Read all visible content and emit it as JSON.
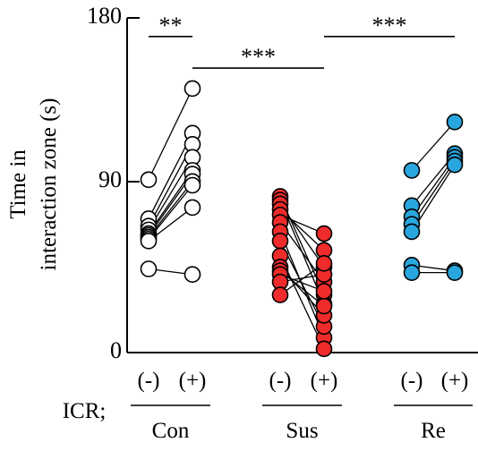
{
  "chart_data": {
    "type": "scatter",
    "style": "paired-dot-plot",
    "ylabel_line1": "Time in",
    "ylabel_line2": "interaction zone (s)",
    "ylim": [
      0,
      180
    ],
    "yticks": [
      "0",
      "90",
      "180"
    ],
    "ticks_values": [
      0,
      90,
      180
    ],
    "row_label": "ICR;",
    "conditions": [
      "(-)",
      "(+)"
    ],
    "groups": [
      {
        "name": "Con",
        "color": "#ffffff",
        "pairs": [
          [
            93,
            142
          ],
          [
            72,
            118
          ],
          [
            68,
            112
          ],
          [
            66,
            105
          ],
          [
            64,
            98
          ],
          [
            63,
            96
          ],
          [
            62,
            92
          ],
          [
            61,
            90
          ],
          [
            60,
            78
          ],
          [
            45,
            42
          ]
        ]
      },
      {
        "name": "Sus",
        "color": "#ef2b2b",
        "pairs": [
          [
            84,
            31
          ],
          [
            82,
            26
          ],
          [
            80,
            46
          ],
          [
            77,
            55
          ],
          [
            74,
            64
          ],
          [
            70,
            38
          ],
          [
            65,
            8
          ],
          [
            60,
            14
          ],
          [
            52,
            2
          ],
          [
            46,
            20
          ],
          [
            44,
            25
          ],
          [
            42,
            33
          ],
          [
            38,
            42
          ],
          [
            31,
            48
          ]
        ]
      },
      {
        "name": "Re",
        "color": "#2aa6df",
        "pairs": [
          [
            98,
            124
          ],
          [
            79,
            107
          ],
          [
            73,
            105
          ],
          [
            69,
            103
          ],
          [
            65,
            101
          ],
          [
            47,
            44
          ],
          [
            43,
            43
          ]
        ]
      }
    ],
    "significance": [
      {
        "label": "**",
        "from": "Con (-)",
        "to": "Con (+)",
        "y": 170
      },
      {
        "label": "***",
        "from": "Con (+)",
        "to": "Sus (+)",
        "y": 153
      },
      {
        "label": "***",
        "from": "Sus (+)",
        "to": "Re (+)",
        "y": 170
      }
    ],
    "grid": false,
    "legend": "none",
    "colors": {
      "axis": "#000000",
      "con": "#ffffff",
      "sus": "#ef2b2b",
      "re": "#2aa6df"
    }
  }
}
